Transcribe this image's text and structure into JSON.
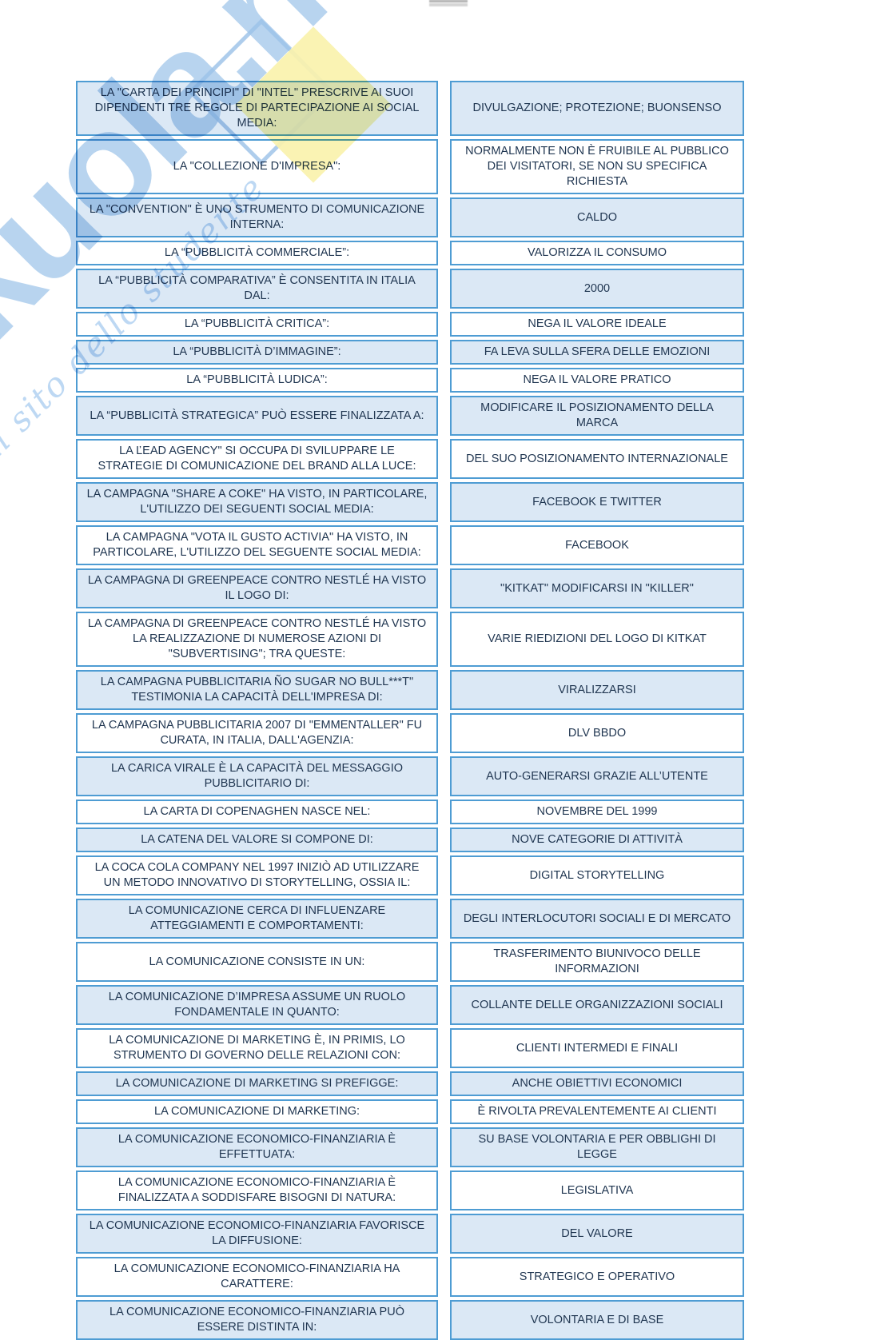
{
  "colors": {
    "cell_border": "#4E9CD3",
    "row_shaded_bg": "#DBE8F5",
    "row_plain_bg": "#FFFFFF",
    "text": "#1F3550",
    "watermark_blue": "#9CC3E9",
    "watermark_yellow": "#FAF2AD"
  },
  "watermark": {
    "brand": "Skuola.net",
    "tagline": "il sito dello studente"
  },
  "table": {
    "rows": [
      {
        "q": "LA \"CARTA DEI PRINCIPI\" DI \"INTEL\" PRESCRIVE AI SUOI DIPENDENTI TRE REGOLE DI PARTECIPAZIONE AI SOCIAL MEDIA:",
        "a": "DIVULGAZIONE; PROTEZIONE; BUONSENSO"
      },
      {
        "q": "LA \"COLLEZIONE D'IMPRESA\":",
        "a": "NORMALMENTE NON È FRUIBILE AL PUBBLICO DEI VISITATORI, SE NON SU SPECIFICA RICHIESTA"
      },
      {
        "q": "LA \"CONVENTION\" È UNO STRUMENTO DI COMUNICAZIONE INTERNA:",
        "a": "CALDO"
      },
      {
        "q": "LA “PUBBLICITÀ COMMERCIALE”:",
        "a": "VALORIZZA IL CONSUMO"
      },
      {
        "q": "LA “PUBBLICITÀ COMPARATIVA” È CONSENTITA IN ITALIA DAL:",
        "a": "2000"
      },
      {
        "q": "LA “PUBBLICITÀ CRITICA”:",
        "a": "NEGA IL VALORE IDEALE"
      },
      {
        "q": "LA “PUBBLICITÀ D’IMMAGINE”:",
        "a": "FA LEVA SULLA SFERA DELLE EMOZIONI"
      },
      {
        "q": "LA “PUBBLICITÀ LUDICA”:",
        "a": "NEGA IL VALORE PRATICO"
      },
      {
        "q": "LA “PUBBLICITÀ STRATEGICA” PUÒ ESSERE FINALIZZATA A:",
        "a": "MODIFICARE IL POSIZIONAMENTO DELLA MARCA"
      },
      {
        "q": "LA ĽEAD AGENCY\" SI OCCUPA DI SVILUPPARE LE STRATEGIE DI COMUNICAZIONE DEL BRAND ALLA LUCE:",
        "a": "DEL SUO POSIZIONAMENTO INTERNAZIONALE"
      },
      {
        "q": "LA CAMPAGNA \"SHARE A COKE\" HA VISTO, IN PARTICOLARE, L'UTILIZZO DEI SEGUENTI SOCIAL MEDIA:",
        "a": "FACEBOOK E TWITTER"
      },
      {
        "q": "LA CAMPAGNA \"VOTA IL GUSTO ACTIVIA\" HA VISTO, IN PARTICOLARE, L'UTILIZZO DEL SEGUENTE SOCIAL MEDIA:",
        "a": "FACEBOOK"
      },
      {
        "q": "LA CAMPAGNA DI GREENPEACE CONTRO NESTLÉ HA VISTO IL LOGO DI:",
        "a": "\"KITKAT\" MODIFICARSI IN \"KILLER\""
      },
      {
        "q": "LA CAMPAGNA DI GREENPEACE CONTRO NESTLÉ HA VISTO LA REALIZZAZIONE DI NUMEROSE AZIONI DI \"SUBVERTISING\"; TRA QUESTE:",
        "a": "VARIE RIEDIZIONI DEL LOGO DI KITKAT"
      },
      {
        "q": "LA CAMPAGNA PUBBLICITARIA ÑO SUGAR NO BULL***T\" TESTIMONIA LA CAPACITÀ DELL'IMPRESA DI:",
        "a": "VIRALIZZARSI"
      },
      {
        "q": "LA CAMPAGNA PUBBLICITARIA 2007 DI \"EMMENTALLER\" FU CURATA, IN ITALIA, DALL'AGENZIA:",
        "a": "DLV BBDO"
      },
      {
        "q": "LA CARICA VIRALE È LA CAPACITÀ DEL MESSAGGIO PUBBLICITARIO DI:",
        "a": "AUTO-GENERARSI GRAZIE ALL’UTENTE"
      },
      {
        "q": "LA CARTA DI COPENAGHEN NASCE NEL:",
        "a": "NOVEMBRE DEL 1999"
      },
      {
        "q": "LA CATENA DEL VALORE SI COMPONE DI:",
        "a": "NOVE CATEGORIE DI ATTIVITÀ"
      },
      {
        "q": "LA COCA COLA COMPANY NEL 1997 INIZIÒ AD UTILIZZARE UN METODO INNOVATIVO DI STORYTELLING, OSSIA IL:",
        "a": "DIGITAL STORYTELLING"
      },
      {
        "q": "LA COMUNICAZIONE CERCA DI INFLUENZARE ATTEGGIAMENTI E COMPORTAMENTI:",
        "a": "DEGLI INTERLOCUTORI SOCIALI E DI MERCATO"
      },
      {
        "q": "LA COMUNICAZIONE CONSISTE IN UN:",
        "a": "TRASFERIMENTO BIUNIVOCO DELLE INFORMAZIONI"
      },
      {
        "q": "LA COMUNICAZIONE D’IMPRESA ASSUME UN RUOLO FONDAMENTALE IN QUANTO:",
        "a": "COLLANTE DELLE ORGANIZZAZIONI SOCIALI"
      },
      {
        "q": "LA COMUNICAZIONE DI MARKETING È, IN PRIMIS, LO STRUMENTO DI GOVERNO DELLE RELAZIONI CON:",
        "a": "CLIENTI INTERMEDI E FINALI"
      },
      {
        "q": "LA COMUNICAZIONE DI MARKETING SI PREFIGGE:",
        "a": "ANCHE OBIETTIVI ECONOMICI"
      },
      {
        "q": "LA COMUNICAZIONE DI MARKETING:",
        "a": "È RIVOLTA PREVALENTEMENTE AI CLIENTI"
      },
      {
        "q": "LA COMUNICAZIONE ECONOMICO-FINANZIARIA È EFFETTUATA:",
        "a": "SU BASE VOLONTARIA E PER OBBLIGHI DI LEGGE"
      },
      {
        "q": "LA COMUNICAZIONE ECONOMICO-FINANZIARIA È FINALIZZATA A SODDISFARE BISOGNI DI NATURA:",
        "a": "LEGISLATIVA"
      },
      {
        "q": "LA COMUNICAZIONE ECONOMICO-FINANZIARIA FAVORISCE LA DIFFUSIONE:",
        "a": "DEL VALORE"
      },
      {
        "q": "LA COMUNICAZIONE ECONOMICO-FINANZIARIA HA CARATTERE:",
        "a": "STRATEGICO E OPERATIVO"
      },
      {
        "q": "LA COMUNICAZIONE ECONOMICO-FINANZIARIA PUÒ ESSERE DISTINTA IN:",
        "a": "VOLONTARIA E DI BASE"
      }
    ]
  }
}
